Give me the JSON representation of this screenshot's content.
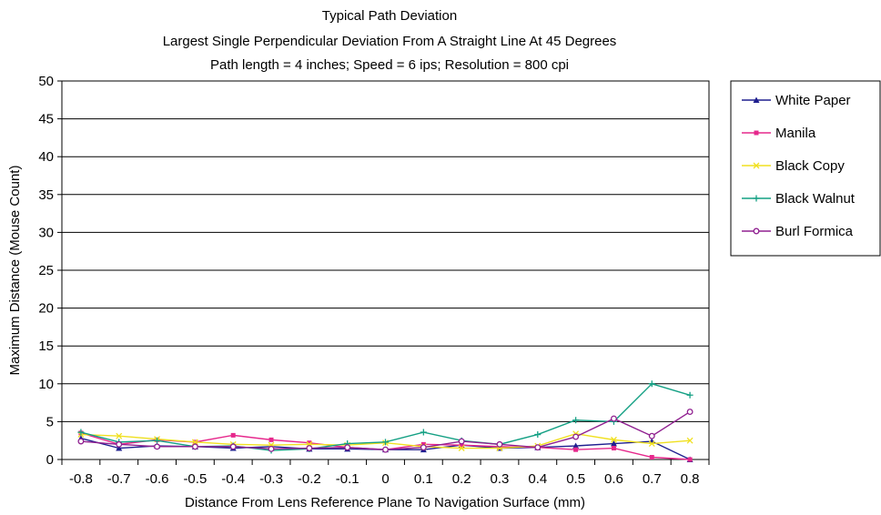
{
  "chart_data": {
    "type": "line",
    "title": [
      "Typical Path Deviation",
      "Largest Single Perpendicular Deviation From A Straight Line At 45 Degrees",
      "Path length = 4 inches; Speed = 6 ips; Resolution = 800 cpi"
    ],
    "xlabel": "Distance From Lens Reference Plane To Navigation Surface (mm)",
    "ylabel": "Maximum Distance (Mouse Count)",
    "x": [
      "-0.8",
      "-0.7",
      "-0.6",
      "-0.5",
      "-0.4",
      "-0.3",
      "-0.2",
      "-0.1",
      "0",
      "0.1",
      "0.2",
      "0.3",
      "0.4",
      "0.5",
      "0.6",
      "0.7",
      "0.8"
    ],
    "ylim": [
      0,
      50
    ],
    "yticks": [
      0,
      5,
      10,
      15,
      20,
      25,
      30,
      35,
      40,
      45,
      50
    ],
    "grid": "horizontal",
    "legend_position": "right",
    "series": [
      {
        "name": "White Paper",
        "color": "#1f1f8f",
        "marker": "triangle",
        "values": [
          2.8,
          1.5,
          1.8,
          1.7,
          1.5,
          1.7,
          1.4,
          1.4,
          1.3,
          1.3,
          1.9,
          1.5,
          1.6,
          1.8,
          2.1,
          2.4,
          0.0
        ]
      },
      {
        "name": "Manila",
        "color": "#e6288c",
        "marker": "square",
        "values": [
          3.5,
          2.0,
          2.6,
          2.3,
          3.2,
          2.6,
          2.2,
          1.6,
          1.3,
          2.0,
          1.9,
          1.7,
          1.6,
          1.3,
          1.5,
          0.3,
          0.0
        ]
      },
      {
        "name": "Black Copy",
        "color": "#f0e020",
        "marker": "x",
        "values": [
          3.3,
          3.1,
          2.7,
          2.3,
          2.0,
          1.9,
          2.0,
          1.9,
          2.2,
          1.7,
          1.5,
          1.5,
          1.8,
          3.4,
          2.6,
          2.1,
          2.5
        ]
      },
      {
        "name": "Black Walnut",
        "color": "#14a084",
        "marker": "plus",
        "values": [
          3.6,
          2.3,
          2.5,
          1.7,
          1.8,
          1.2,
          1.4,
          2.1,
          2.3,
          3.6,
          2.5,
          2.0,
          3.3,
          5.2,
          5.0,
          10.0,
          8.5
        ]
      },
      {
        "name": "Burl Formica",
        "color": "#902090",
        "marker": "circle",
        "values": [
          2.4,
          2.0,
          1.7,
          1.7,
          1.7,
          1.4,
          1.5,
          1.6,
          1.3,
          1.6,
          2.4,
          2.0,
          1.6,
          3.0,
          5.4,
          3.1,
          6.3
        ]
      }
    ]
  }
}
